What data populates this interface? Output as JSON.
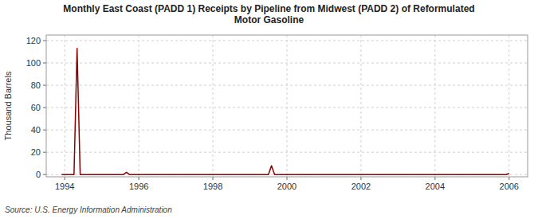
{
  "chart_data": {
    "type": "line",
    "title": "Monthly East Coast (PADD 1) Receipts by Pipeline from Midwest (PADD 2) of Reformulated\nMotor Gasoline",
    "y_label": "Thousand Barrels",
    "source": "Source: U.S. Energy Information Administration",
    "color": "#8b0000",
    "grid": true,
    "xlim": [
      1993.5,
      2006.5
    ],
    "ylim": [
      -2,
      125
    ],
    "yticks": [
      0,
      20,
      40,
      60,
      80,
      100,
      120
    ],
    "xticks": [
      1994,
      1996,
      1998,
      2000,
      2002,
      2004,
      2006
    ],
    "x": [
      1993.917,
      1994.0,
      1994.083,
      1994.167,
      1994.25,
      1994.333,
      1994.417,
      1994.5,
      1994.583,
      1994.667,
      1994.75,
      1994.833,
      1994.917,
      1995.0,
      1995.083,
      1995.167,
      1995.25,
      1995.333,
      1995.417,
      1995.5,
      1995.583,
      1995.667,
      1995.75,
      1995.833,
      1995.917,
      1996.0,
      1996.083,
      1996.167,
      1996.25,
      1996.333,
      1996.417,
      1996.5,
      1996.583,
      1996.667,
      1996.75,
      1996.833,
      1996.917,
      1997.0,
      1997.083,
      1997.167,
      1997.25,
      1997.333,
      1997.417,
      1997.5,
      1997.583,
      1997.667,
      1997.75,
      1997.833,
      1997.917,
      1998.0,
      1998.083,
      1998.167,
      1998.25,
      1998.333,
      1998.417,
      1998.5,
      1998.583,
      1998.667,
      1998.75,
      1998.833,
      1998.917,
      1999.0,
      1999.083,
      1999.167,
      1999.25,
      1999.333,
      1999.417,
      1999.5,
      1999.583,
      1999.667,
      1999.75,
      1999.833,
      1999.917,
      2000.0,
      2000.083,
      2000.167,
      2000.25,
      2000.333,
      2000.417,
      2000.5,
      2000.583,
      2000.667,
      2000.75,
      2000.833,
      2000.917,
      2001.0,
      2001.083,
      2001.167,
      2001.25,
      2001.333,
      2001.417,
      2001.5,
      2001.583,
      2001.667,
      2001.75,
      2001.833,
      2001.917,
      2002.0,
      2002.083,
      2002.167,
      2002.25,
      2002.333,
      2002.417,
      2002.5,
      2002.583,
      2002.667,
      2002.75,
      2002.833,
      2002.917,
      2003.0,
      2003.083,
      2003.167,
      2003.25,
      2003.333,
      2003.417,
      2003.5,
      2003.583,
      2003.667,
      2003.75,
      2003.833,
      2003.917,
      2004.0,
      2004.083,
      2004.167,
      2004.25,
      2004.333,
      2004.417,
      2004.5,
      2004.583,
      2004.667,
      2004.75,
      2004.833,
      2004.917,
      2005.0,
      2005.083,
      2005.167,
      2005.25,
      2005.333,
      2005.417,
      2005.5,
      2005.583,
      2005.667,
      2005.75,
      2005.833,
      2005.917,
      2006.0
    ],
    "values": [
      0,
      0,
      0,
      0,
      0,
      113,
      0,
      0,
      0,
      0,
      0,
      0,
      0,
      0,
      0,
      0,
      0,
      0,
      0,
      0,
      0,
      2,
      0,
      0,
      0,
      0,
      0,
      0,
      0,
      0,
      0,
      0,
      0,
      0,
      0,
      0,
      0,
      0,
      0,
      0,
      0,
      0,
      0,
      0,
      0,
      0,
      0,
      0,
      0,
      0,
      0,
      0,
      0,
      0,
      0,
      0,
      0,
      0,
      0,
      0,
      0,
      0,
      0,
      0,
      0,
      0,
      0,
      0,
      8,
      0,
      0,
      0,
      0,
      0,
      0,
      0,
      0,
      0,
      0,
      0,
      0,
      0,
      0,
      0,
      0,
      0,
      0,
      0,
      0,
      0,
      0,
      0,
      0,
      0,
      0,
      0,
      0,
      0,
      0,
      0,
      0,
      0,
      0,
      0,
      0,
      0,
      0,
      0,
      0,
      0,
      0,
      0,
      0,
      0,
      0,
      0,
      0,
      0,
      0,
      0,
      0,
      0,
      0,
      0,
      0,
      0,
      0,
      0,
      0,
      0,
      0,
      0,
      0,
      0,
      0,
      0,
      0,
      0,
      0,
      0,
      0,
      0,
      0,
      0,
      0,
      1
    ]
  }
}
